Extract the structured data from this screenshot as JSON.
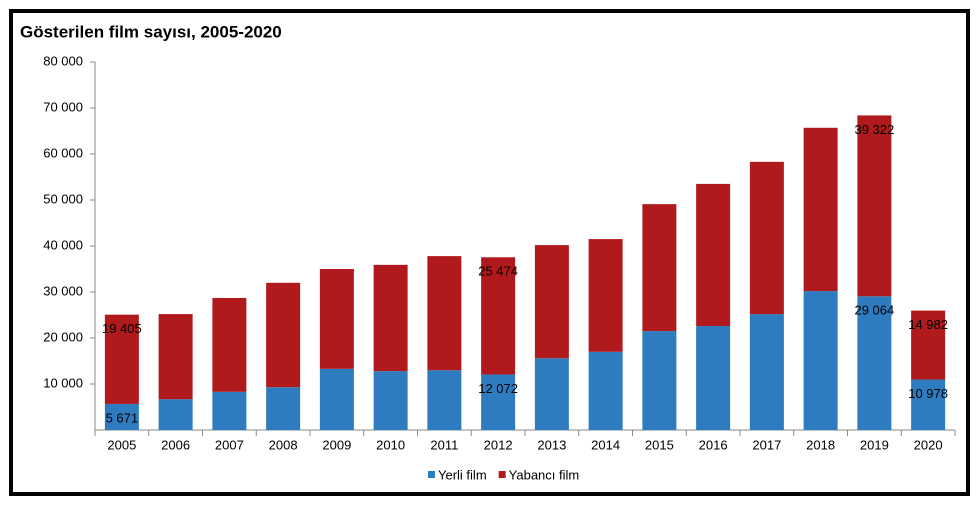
{
  "chart_data": {
    "type": "stacked_bar",
    "title": "Gösterilen film sayısı, 2005-2020",
    "categories": [
      "2005",
      "2006",
      "2007",
      "2008",
      "2009",
      "2010",
      "2011",
      "2012",
      "2013",
      "2014",
      "2015",
      "2016",
      "2017",
      "2018",
      "2019",
      "2020"
    ],
    "series": [
      {
        "name": "Yerli film",
        "color": "#2e7cbf",
        "values": [
          5671,
          6700,
          8300,
          9300,
          13300,
          12800,
          13000,
          12072,
          15600,
          17000,
          21500,
          22600,
          25200,
          30200,
          29064,
          10978
        ],
        "value_labels": [
          "5 671",
          null,
          null,
          null,
          null,
          null,
          null,
          "12 072",
          null,
          null,
          null,
          null,
          null,
          null,
          "29 064",
          "10 978"
        ]
      },
      {
        "name": "Yabancı film",
        "color": "#b01a1c",
        "values": [
          19405,
          18500,
          20400,
          22700,
          21700,
          23100,
          24800,
          25474,
          24600,
          24500,
          27600,
          30900,
          33100,
          35500,
          39322,
          14982
        ],
        "value_labels": [
          "19 405",
          null,
          null,
          null,
          null,
          null,
          null,
          "25 474",
          null,
          null,
          null,
          null,
          null,
          null,
          "39 322",
          "14 982"
        ]
      }
    ],
    "ylim": [
      0,
      80000
    ],
    "yticks": [
      {
        "value": 10000,
        "label": "10 000"
      },
      {
        "value": 20000,
        "label": "20 000"
      },
      {
        "value": 30000,
        "label": "30 000"
      },
      {
        "value": 40000,
        "label": "40 000"
      },
      {
        "value": 50000,
        "label": "50 000"
      },
      {
        "value": 60000,
        "label": "60 000"
      },
      {
        "value": 70000,
        "label": "70 000"
      },
      {
        "value": 80000,
        "label": "80 000"
      }
    ],
    "legend": "bottom"
  }
}
